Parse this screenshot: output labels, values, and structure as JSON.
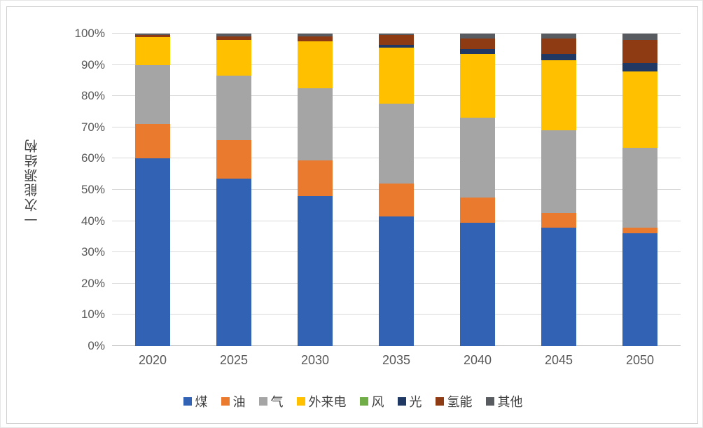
{
  "chart_data": {
    "type": "bar",
    "stacked": true,
    "percent_stacked": true,
    "title": "",
    "ylabel": "一次能源结构",
    "xlabel": "",
    "ylim": [
      0,
      100
    ],
    "grid": true,
    "legend_position": "bottom",
    "yticks": [
      "0%",
      "10%",
      "20%",
      "30%",
      "40%",
      "50%",
      "60%",
      "70%",
      "80%",
      "90%",
      "100%"
    ],
    "categories": [
      "2020",
      "2025",
      "2030",
      "2035",
      "2040",
      "2045",
      "2050"
    ],
    "series": [
      {
        "name": "煤",
        "color": "#3162B4",
        "values": [
          60,
          53.5,
          48,
          41.5,
          39.5,
          38,
          36
        ]
      },
      {
        "name": "油",
        "color": "#E97A2E",
        "values": [
          11,
          12.5,
          11.5,
          10.5,
          8,
          4.5,
          2
        ]
      },
      {
        "name": "气",
        "color": "#A5A5A5",
        "values": [
          19,
          20.5,
          23,
          25.5,
          25.5,
          26.5,
          25.5
        ]
      },
      {
        "name": "外来电",
        "color": "#FFC000",
        "values": [
          9,
          11.5,
          15,
          18,
          20.5,
          22.5,
          24.5
        ]
      },
      {
        "name": "风",
        "color": "#70AD47",
        "values": [
          0,
          0,
          0,
          0,
          0,
          0,
          0
        ]
      },
      {
        "name": "光",
        "color": "#1F3864",
        "values": [
          0,
          0,
          0,
          1,
          1.5,
          2,
          2.5
        ]
      },
      {
        "name": "氢能",
        "color": "#8E3B14",
        "values": [
          0.5,
          1,
          1.5,
          3,
          3.5,
          5,
          7.5
        ]
      },
      {
        "name": "其他",
        "color": "#585B60",
        "values": [
          0.5,
          1,
          1,
          0.5,
          1.5,
          1.5,
          2
        ]
      }
    ],
    "colors": {
      "gridline": "#d9d9d9",
      "axis_line": "#bfbfbf",
      "tick_text": "#595959"
    }
  }
}
